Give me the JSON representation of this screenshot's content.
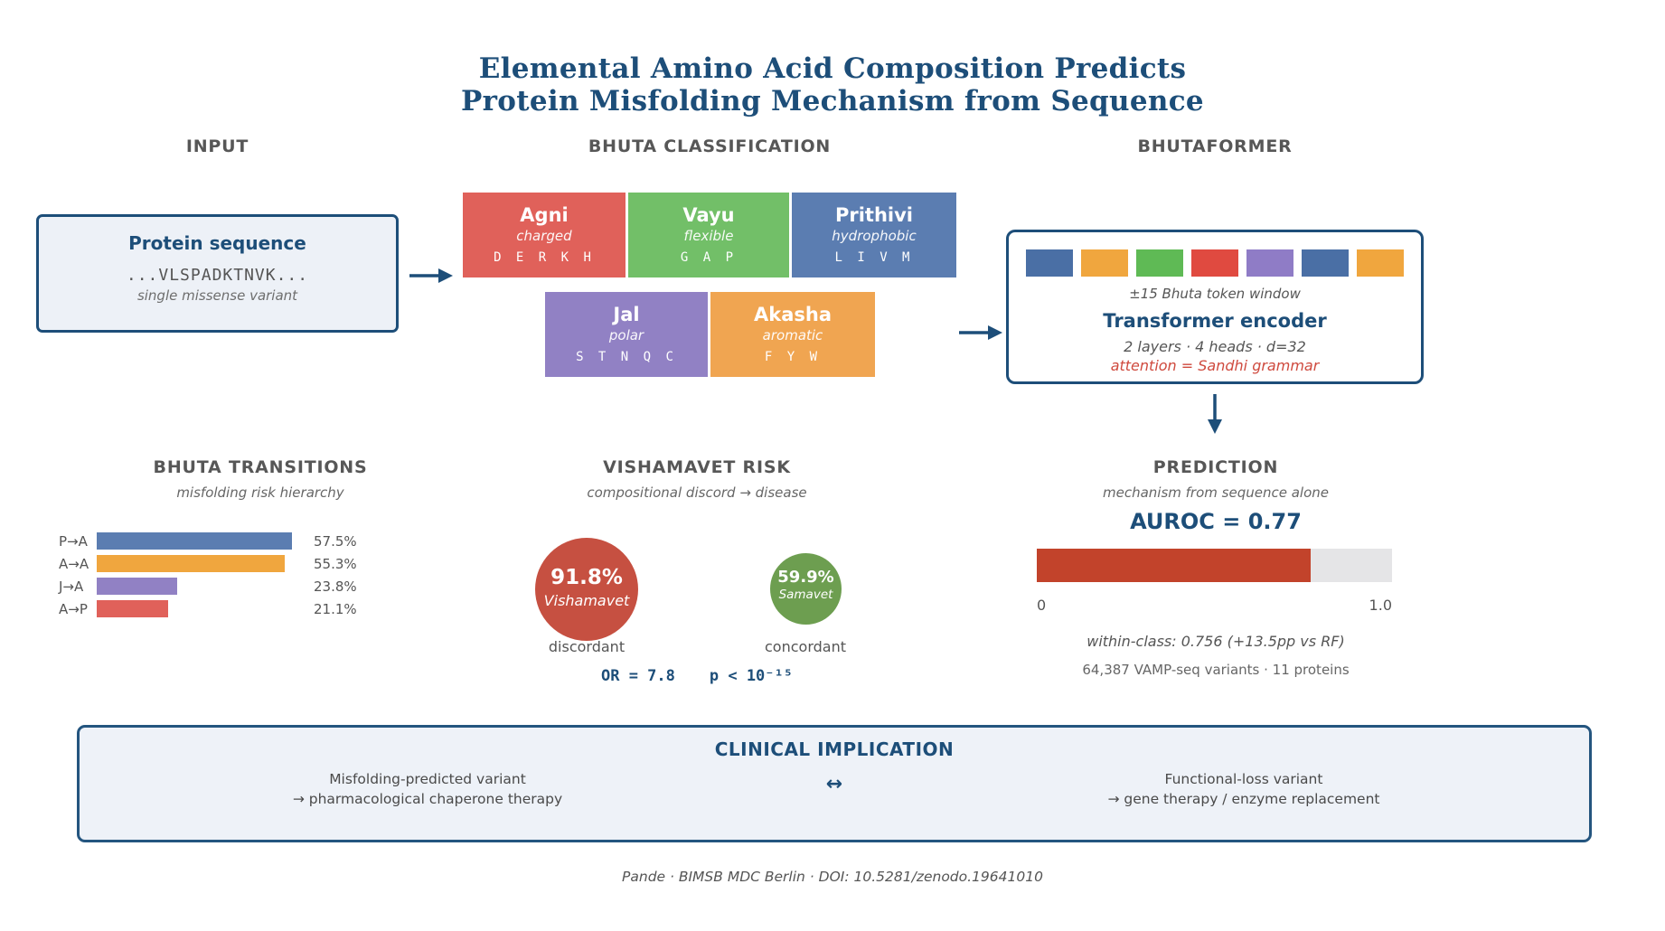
{
  "title": {
    "line1": "Elemental Amino Acid Composition Predicts",
    "line2": "Protein Misfolding Mechanism from Sequence"
  },
  "column_headers": {
    "input": "INPUT",
    "classification": "BHUTA CLASSIFICATION",
    "bhutaformer": "BHUTAFORMER"
  },
  "input_box": {
    "title": "Protein sequence",
    "sequence": "...VLSPADKTNVK...",
    "note": "single missense variant"
  },
  "bhuta_elements": [
    {
      "name": "Agni",
      "property": "charged",
      "letters": "D E R K H",
      "color": "#e0615a"
    },
    {
      "name": "Vayu",
      "property": "flexible",
      "letters": "G A P",
      "color": "#72bf68"
    },
    {
      "name": "Prithivi",
      "property": "hydrophobic",
      "letters": "L I V M",
      "color": "#5b7db1"
    },
    {
      "name": "Jal",
      "property": "polar",
      "letters": "S T N Q C",
      "color": "#9181c4"
    },
    {
      "name": "Akasha",
      "property": "aromatic",
      "letters": "F Y W",
      "color": "#f0a551"
    }
  ],
  "bhutaformer": {
    "token_colors": [
      "#4a6fa5",
      "#f0a63e",
      "#5fba55",
      "#e04a40",
      "#8f7cc6",
      "#4a6fa5",
      "#f0a63e"
    ],
    "window_label": "±15 Bhuta token window",
    "encoder_title": "Transformer encoder",
    "encoder_specs": "2 layers · 4 heads · d=32",
    "attention_note": "attention = Sandhi grammar",
    "attention_color": "#cf4a3e"
  },
  "transitions": {
    "header": "BHUTA TRANSITIONS",
    "subtitle": "misfolding risk hierarchy",
    "chart_data": {
      "type": "bar",
      "orientation": "horizontal",
      "categories": [
        "P→A",
        "A→A",
        "J→A",
        "A→P"
      ],
      "values": [
        57.5,
        55.3,
        23.8,
        21.1
      ],
      "value_labels": [
        "57.5%",
        "55.3%",
        "23.8%",
        "21.1%"
      ],
      "bar_colors": [
        "#5b7db1",
        "#f0a63e",
        "#9181c4",
        "#e0615a"
      ],
      "xlim": [
        0,
        64
      ],
      "grid": false,
      "legend": false
    }
  },
  "vishamavet": {
    "header": "VISHAMAVET RISK",
    "subtitle": "compositional discord → disease",
    "circles": [
      {
        "value": "91.8%",
        "label": "Vishamavet",
        "caption": "discordant",
        "color": "#c65041"
      },
      {
        "value": "59.9%",
        "label": "Samavet",
        "caption": "concordant",
        "color": "#6d9e50"
      }
    ],
    "odds_ratio": "OR = 7.8",
    "p_value": "p < 10⁻¹⁵"
  },
  "prediction": {
    "header": "PREDICTION",
    "subtitle": "mechanism from sequence alone",
    "auroc_label": "AUROC = 0.77",
    "auroc_value": 0.77,
    "bar_fill_color": "#c2432b",
    "bar_track_color": "#e5e5e7",
    "scale_min": "0",
    "scale_max": "1.0",
    "within_class": "within-class: 0.756 (+13.5pp vs RF)",
    "dataset": "64,387 VAMP-seq variants · 11 proteins"
  },
  "clinical": {
    "header": "CLINICAL IMPLICATION",
    "left_line1": "Misfolding-predicted variant",
    "left_line2": "→ pharmacological chaperone therapy",
    "arrow": "↔",
    "right_line1": "Functional-loss variant",
    "right_line2": "→ gene therapy / enzyme replacement"
  },
  "footer": "Pande · BIMSB MDC Berlin · DOI: 10.5281/zenodo.19641010",
  "accent_navy": "#1d4e79"
}
